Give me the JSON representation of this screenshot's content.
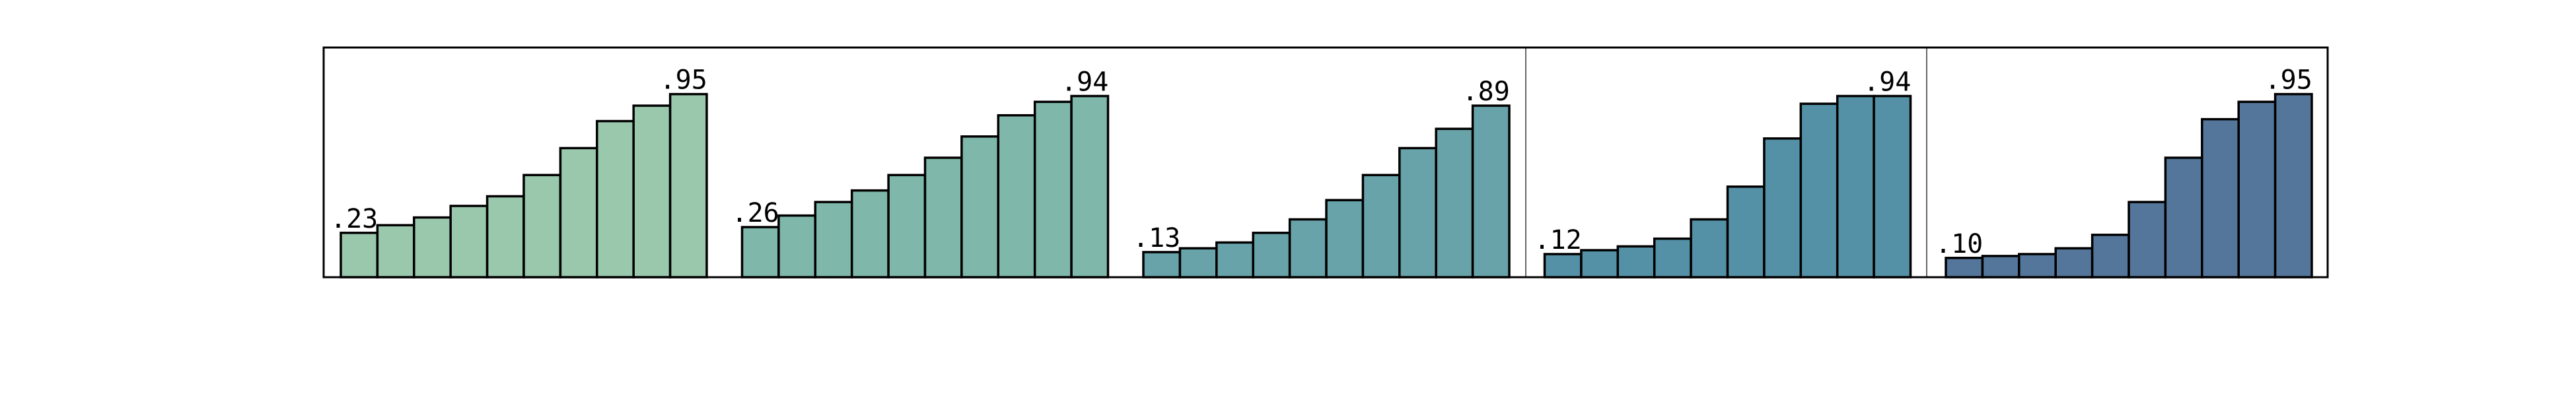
{
  "chart_data": {
    "type": "bar",
    "ylim": [
      0,
      1
    ],
    "grid": false,
    "legend": "none",
    "panels": [
      {
        "color": "#99c8ad",
        "values": [
          0.23,
          0.27,
          0.31,
          0.37,
          0.42,
          0.53,
          0.67,
          0.81,
          0.89,
          0.95
        ],
        "labels": [
          ".23",
          "",
          "",
          "",
          "",
          "",
          "",
          "",
          "",
          ".95"
        ]
      },
      {
        "color": "#7fb7aa",
        "values": [
          0.26,
          0.32,
          0.39,
          0.45,
          0.53,
          0.62,
          0.73,
          0.84,
          0.91,
          0.94
        ],
        "labels": [
          ".26",
          "",
          "",
          "",
          "",
          "",
          "",
          "",
          "",
          ".94"
        ]
      },
      {
        "color": "#68a3a9",
        "values": [
          0.13,
          0.15,
          0.18,
          0.23,
          0.3,
          0.4,
          0.53,
          0.67,
          0.77,
          0.89
        ],
        "labels": [
          ".13",
          "",
          "",
          "",
          "",
          "",
          "",
          "",
          "",
          ".89"
        ]
      },
      {
        "color": "#5591a6",
        "values": [
          0.12,
          0.14,
          0.16,
          0.2,
          0.3,
          0.47,
          0.72,
          0.9,
          0.94,
          0.94
        ],
        "labels": [
          ".12",
          "",
          "",
          "",
          "",
          "",
          "",
          "",
          "",
          ".94"
        ]
      },
      {
        "color": "#55769b",
        "values": [
          0.1,
          0.11,
          0.12,
          0.15,
          0.22,
          0.39,
          0.62,
          0.82,
          0.91,
          0.95
        ],
        "labels": [
          ".10",
          "",
          "",
          "",
          "",
          "",
          "",
          "",
          "",
          ".95"
        ]
      }
    ]
  }
}
